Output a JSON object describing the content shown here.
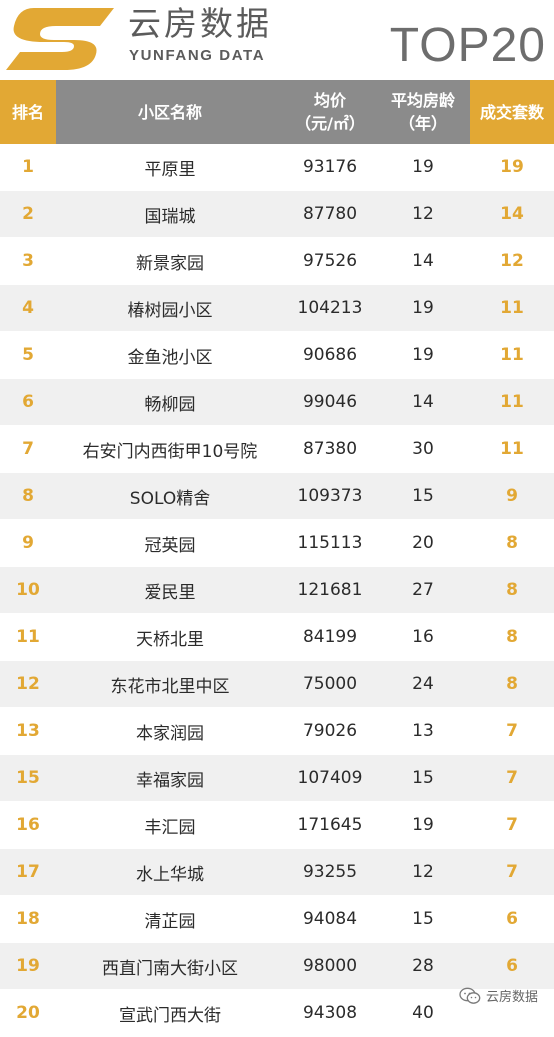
{
  "brand": {
    "name_cn": "云房数据",
    "name_en": "YUNFANG DATA",
    "badge": "TOP20",
    "logo_icon": "yunfang-s-logo-icon",
    "accent_color": "#e2a834",
    "header_gray": "#8b8b8b"
  },
  "table": {
    "headers": {
      "rank": "排名",
      "name": "小区名称",
      "price_line1": "均价",
      "price_line2": "（元/㎡）",
      "age_line1": "平均房龄",
      "age_line2": "（年）",
      "count": "成交套数"
    },
    "rows": [
      {
        "rank": "1",
        "name": "平原里",
        "price": "93176",
        "age": "19",
        "count": "19"
      },
      {
        "rank": "2",
        "name": "国瑞城",
        "price": "87780",
        "age": "12",
        "count": "14"
      },
      {
        "rank": "3",
        "name": "新景家园",
        "price": "97526",
        "age": "14",
        "count": "12"
      },
      {
        "rank": "4",
        "name": "椿树园小区",
        "price": "104213",
        "age": "19",
        "count": "11"
      },
      {
        "rank": "5",
        "name": "金鱼池小区",
        "price": "90686",
        "age": "19",
        "count": "11"
      },
      {
        "rank": "6",
        "name": "畅柳园",
        "price": "99046",
        "age": "14",
        "count": "11"
      },
      {
        "rank": "7",
        "name": "右安门内西街甲10号院",
        "price": "87380",
        "age": "30",
        "count": "11"
      },
      {
        "rank": "8",
        "name": "SOLO精舍",
        "price": "109373",
        "age": "15",
        "count": "9"
      },
      {
        "rank": "9",
        "name": "冠英园",
        "price": "115113",
        "age": "20",
        "count": "8"
      },
      {
        "rank": "10",
        "name": "爱民里",
        "price": "121681",
        "age": "27",
        "count": "8"
      },
      {
        "rank": "11",
        "name": "天桥北里",
        "price": "84199",
        "age": "16",
        "count": "8"
      },
      {
        "rank": "12",
        "name": "东花市北里中区",
        "price": "75000",
        "age": "24",
        "count": "8"
      },
      {
        "rank": "13",
        "name": "本家润园",
        "price": "79026",
        "age": "13",
        "count": "7"
      },
      {
        "rank": "15",
        "name": "幸福家园",
        "price": "107409",
        "age": "15",
        "count": "7"
      },
      {
        "rank": "16",
        "name": "丰汇园",
        "price": "171645",
        "age": "19",
        "count": "7"
      },
      {
        "rank": "17",
        "name": "水上华城",
        "price": "93255",
        "age": "12",
        "count": "7"
      },
      {
        "rank": "18",
        "name": "清芷园",
        "price": "94084",
        "age": "15",
        "count": "6"
      },
      {
        "rank": "19",
        "name": "西直门南大街小区",
        "price": "98000",
        "age": "28",
        "count": "6"
      },
      {
        "rank": "20",
        "name": "宣武门西大街",
        "price": "94308",
        "age": "40",
        "count": ""
      }
    ]
  },
  "watermark": {
    "icon": "wechat-icon",
    "text": "云房数据"
  }
}
